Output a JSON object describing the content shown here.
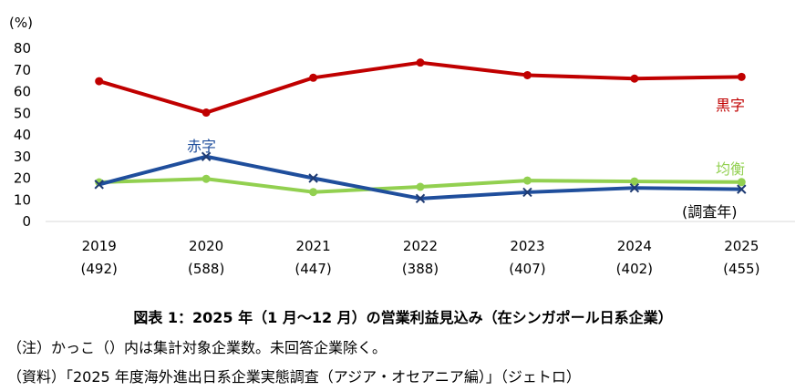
{
  "chart_data": {
    "type": "line",
    "ylabel": "(%)",
    "ylim": [
      0,
      80
    ],
    "yticks": [
      0,
      10,
      20,
      30,
      40,
      50,
      60,
      70,
      80
    ],
    "categories": [
      "2019",
      "2020",
      "2021",
      "2022",
      "2023",
      "2024",
      "2025"
    ],
    "category_counts": [
      "(492)",
      "(588)",
      "(447)",
      "(388)",
      "(407)",
      "(402)",
      "(455)"
    ],
    "grid": false,
    "series": [
      {
        "name": "黒字",
        "color": "#c00000",
        "marker": "circle",
        "values": [
          64.8,
          50.3,
          66.4,
          73.4,
          67.6,
          66.0,
          66.8
        ]
      },
      {
        "name": "均衡",
        "color": "#92d050",
        "marker": "circle",
        "values": [
          18.1,
          19.7,
          13.6,
          16.0,
          18.9,
          18.5,
          18.2
        ]
      },
      {
        "name": "赤字",
        "color": "#1f4e9c",
        "marker": "x",
        "values": [
          17.1,
          30.0,
          20.0,
          10.6,
          13.5,
          15.5,
          14.9
        ]
      }
    ],
    "annotation": "(調査年)"
  },
  "caption": {
    "title": "図表 1：2025 年（1 月～12 月）の営業利益見込み（在シンガポール日系企業）",
    "note": "（注）かっこ（）内は集計対象企業数。未回答企業除く。",
    "source": "（資料）「2025 年度海外進出日系企業実態調査（アジア・オセアニア編）」（ジェトロ）"
  }
}
